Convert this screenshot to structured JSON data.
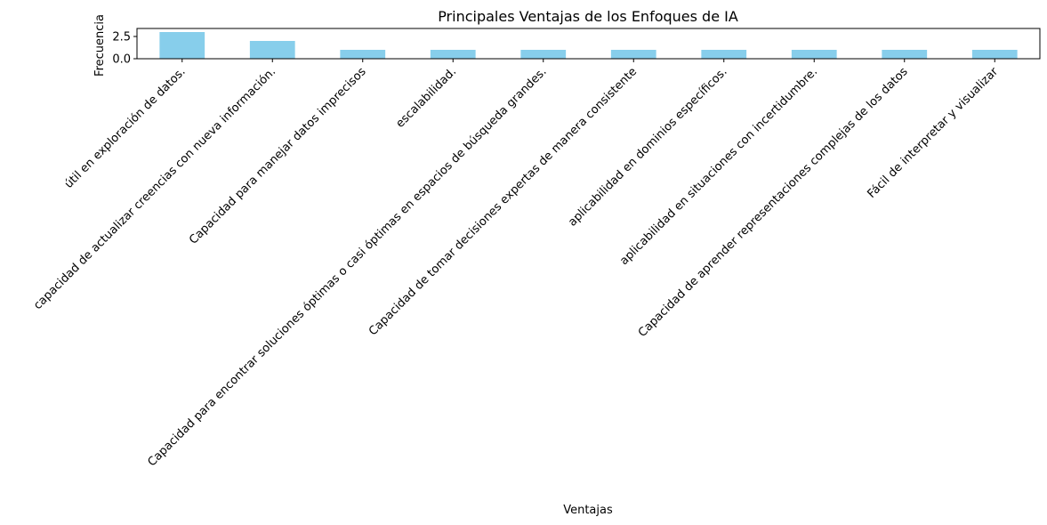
{
  "chart_data": {
    "type": "bar",
    "title": "Principales Ventajas de los Enfoques de IA",
    "xlabel": "Ventajas",
    "ylabel": "Frecuencia",
    "categories": [
      "útil en exploración de datos.",
      "capacidad de actualizar creencias con nueva información.",
      "Capacidad para manejar datos imprecisos",
      "escalabilidad.",
      "Capacidad para encontrar soluciones óptimas o casi óptimas en espacios de búsqueda grandes.",
      "Capacidad de tomar decisiones expertas de manera consistente",
      "aplicabilidad en dominios específicos.",
      "aplicabilidad en situaciones con incertidumbre.",
      "Capacidad de aprender representaciones complejas de los datos",
      "Fácil de interpretar y visualizar"
    ],
    "values": [
      3,
      2,
      1,
      1,
      1,
      1,
      1,
      1,
      1,
      1
    ],
    "ylim": [
      0,
      3.4
    ],
    "yticks": [
      "0.0",
      "2.5"
    ],
    "ytick_values": [
      0,
      2.5
    ],
    "bar_color": "#87ceeb",
    "grid": false,
    "legend": "none"
  }
}
